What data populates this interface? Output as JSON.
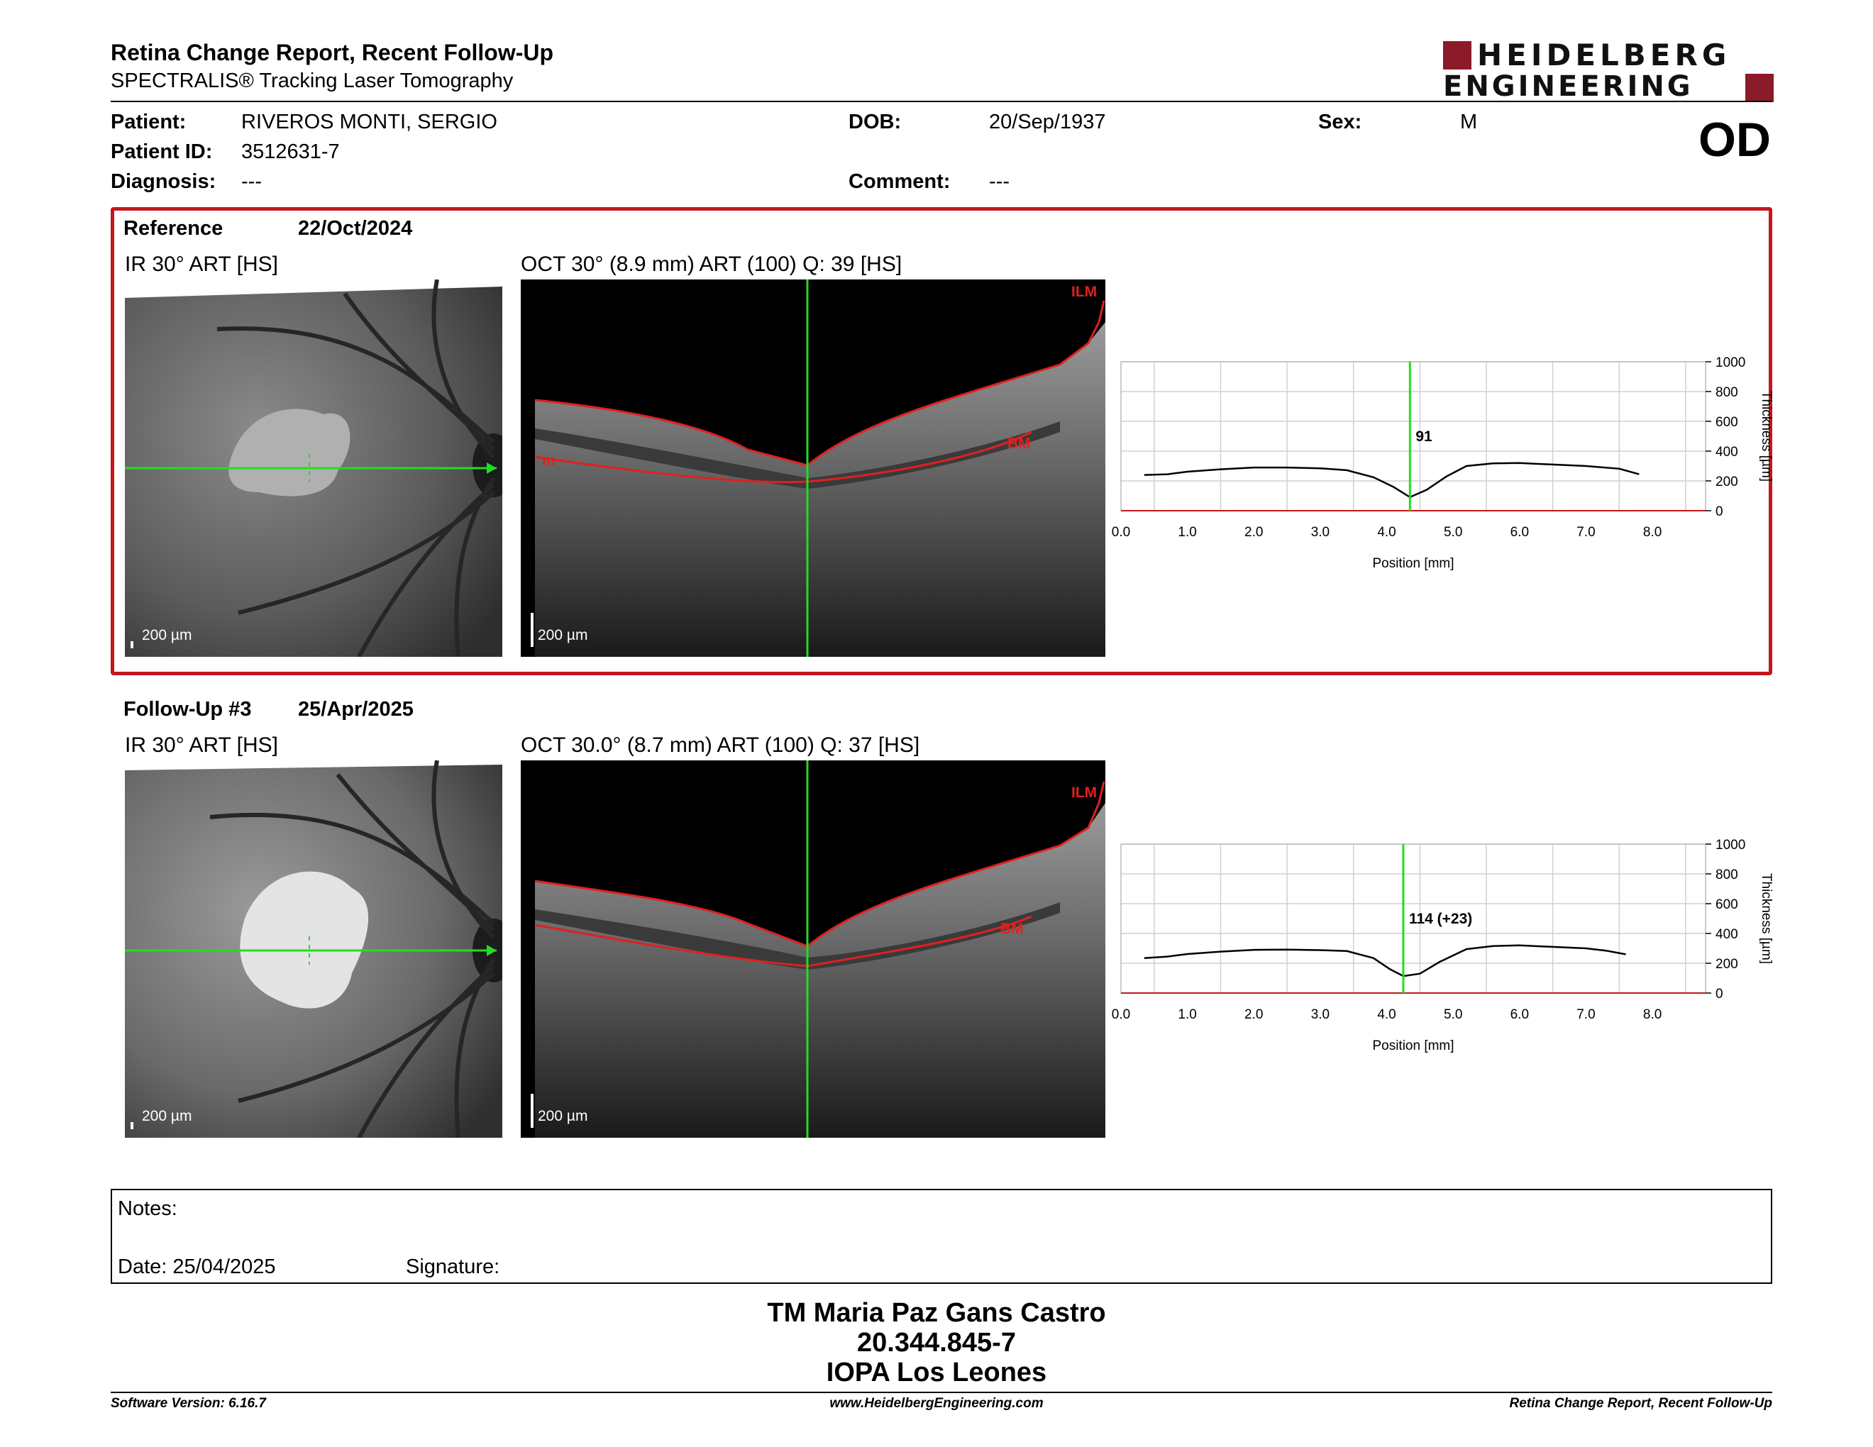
{
  "header": {
    "title": "Retina Change Report, Recent Follow-Up",
    "subtitle": "SPECTRALIS® Tracking Laser Tomography",
    "logo_line1": "HEIDELBERG",
    "logo_line2": "ENGINEERING",
    "eye": "OD"
  },
  "patient": {
    "patient_label": "Patient:",
    "patient_value": "RIVEROS MONTI, SERGIO",
    "id_label": "Patient ID:",
    "id_value": "3512631-7",
    "diagnosis_label": "Diagnosis:",
    "diagnosis_value": "---",
    "dob_label": "DOB:",
    "dob_value": "20/Sep/1937",
    "comment_label": "Comment:",
    "comment_value": "---",
    "sex_label": "Sex:",
    "sex_value": "M"
  },
  "reference": {
    "label": "Reference",
    "date": "22/Oct/2024",
    "ir_caption": "IR 30° ART [HS]",
    "oct_caption": "OCT 30° (8.9 mm) ART (100) Q: 39 [HS]",
    "scale": "200 µm",
    "ilm": "ILM",
    "bm": "BM",
    "m": "m"
  },
  "followup": {
    "label": "Follow-Up #3",
    "date": "25/Apr/2025",
    "ir_caption": "IR 30° ART [HS]",
    "oct_caption": "OCT 30.0° (8.7 mm) ART (100) Q: 37 [HS]",
    "scale": "200 µm",
    "ilm": "ILM",
    "bm": "BM"
  },
  "notes": {
    "notes_label": "Notes:",
    "date_label": "Date: 25/04/2025",
    "signature_label": "Signature:"
  },
  "signatory": {
    "name": "TM Maria Paz Gans Castro",
    "id": "20.344.845-7",
    "org": "IOPA Los Leones"
  },
  "footer": {
    "left": "Software Version: 6.16.7",
    "center": "www.HeidelbergEngineering.com",
    "right": "Retina Change Report, Recent Follow-Up"
  },
  "colors": {
    "accent_red": "#c4161c",
    "brand_red": "#8b1a2b",
    "scan_line_green": "#22dd22"
  },
  "chart_data": [
    {
      "type": "line",
      "xlabel": "Position [mm]",
      "ylabel": "Thickness [µm]",
      "xlim": [
        0,
        8.8
      ],
      "ylim": [
        0,
        1000
      ],
      "x_ticks": [
        "0.0",
        "1.0",
        "2.0",
        "3.0",
        "4.0",
        "5.0",
        "6.0",
        "7.0",
        "8.0"
      ],
      "y_ticks": [
        "0",
        "200",
        "400",
        "600",
        "800",
        "1000"
      ],
      "marker_x": 4.35,
      "marker_label": "91",
      "series": [
        {
          "x": [
            0.35,
            0.7,
            1.0,
            1.5,
            2.0,
            2.5,
            3.0,
            3.4,
            3.8,
            4.1,
            4.35,
            4.6,
            4.9,
            5.2,
            5.6,
            6.0,
            6.5,
            7.0,
            7.5,
            7.8
          ],
          "values": [
            240,
            245,
            262,
            278,
            290,
            290,
            285,
            272,
            225,
            160,
            91,
            140,
            230,
            300,
            318,
            320,
            310,
            300,
            282,
            245
          ]
        }
      ],
      "grid": true
    },
    {
      "type": "line",
      "xlabel": "Position [mm]",
      "ylabel": "Thickness [µm]",
      "xlim": [
        0,
        8.8
      ],
      "ylim": [
        0,
        1000
      ],
      "x_ticks": [
        "0.0",
        "1.0",
        "2.0",
        "3.0",
        "4.0",
        "5.0",
        "6.0",
        "7.0",
        "8.0"
      ],
      "y_ticks": [
        "0",
        "200",
        "400",
        "600",
        "800",
        "1000"
      ],
      "marker_x": 4.25,
      "marker_label": "114 (+23)",
      "series": [
        {
          "x": [
            0.35,
            0.7,
            1.0,
            1.5,
            2.0,
            2.5,
            3.0,
            3.4,
            3.8,
            4.05,
            4.25,
            4.5,
            4.8,
            5.2,
            5.6,
            6.0,
            6.5,
            7.0,
            7.3,
            7.6
          ],
          "values": [
            235,
            245,
            262,
            278,
            290,
            292,
            288,
            282,
            235,
            160,
            114,
            130,
            210,
            295,
            315,
            320,
            310,
            300,
            285,
            260
          ]
        }
      ],
      "grid": true
    }
  ]
}
